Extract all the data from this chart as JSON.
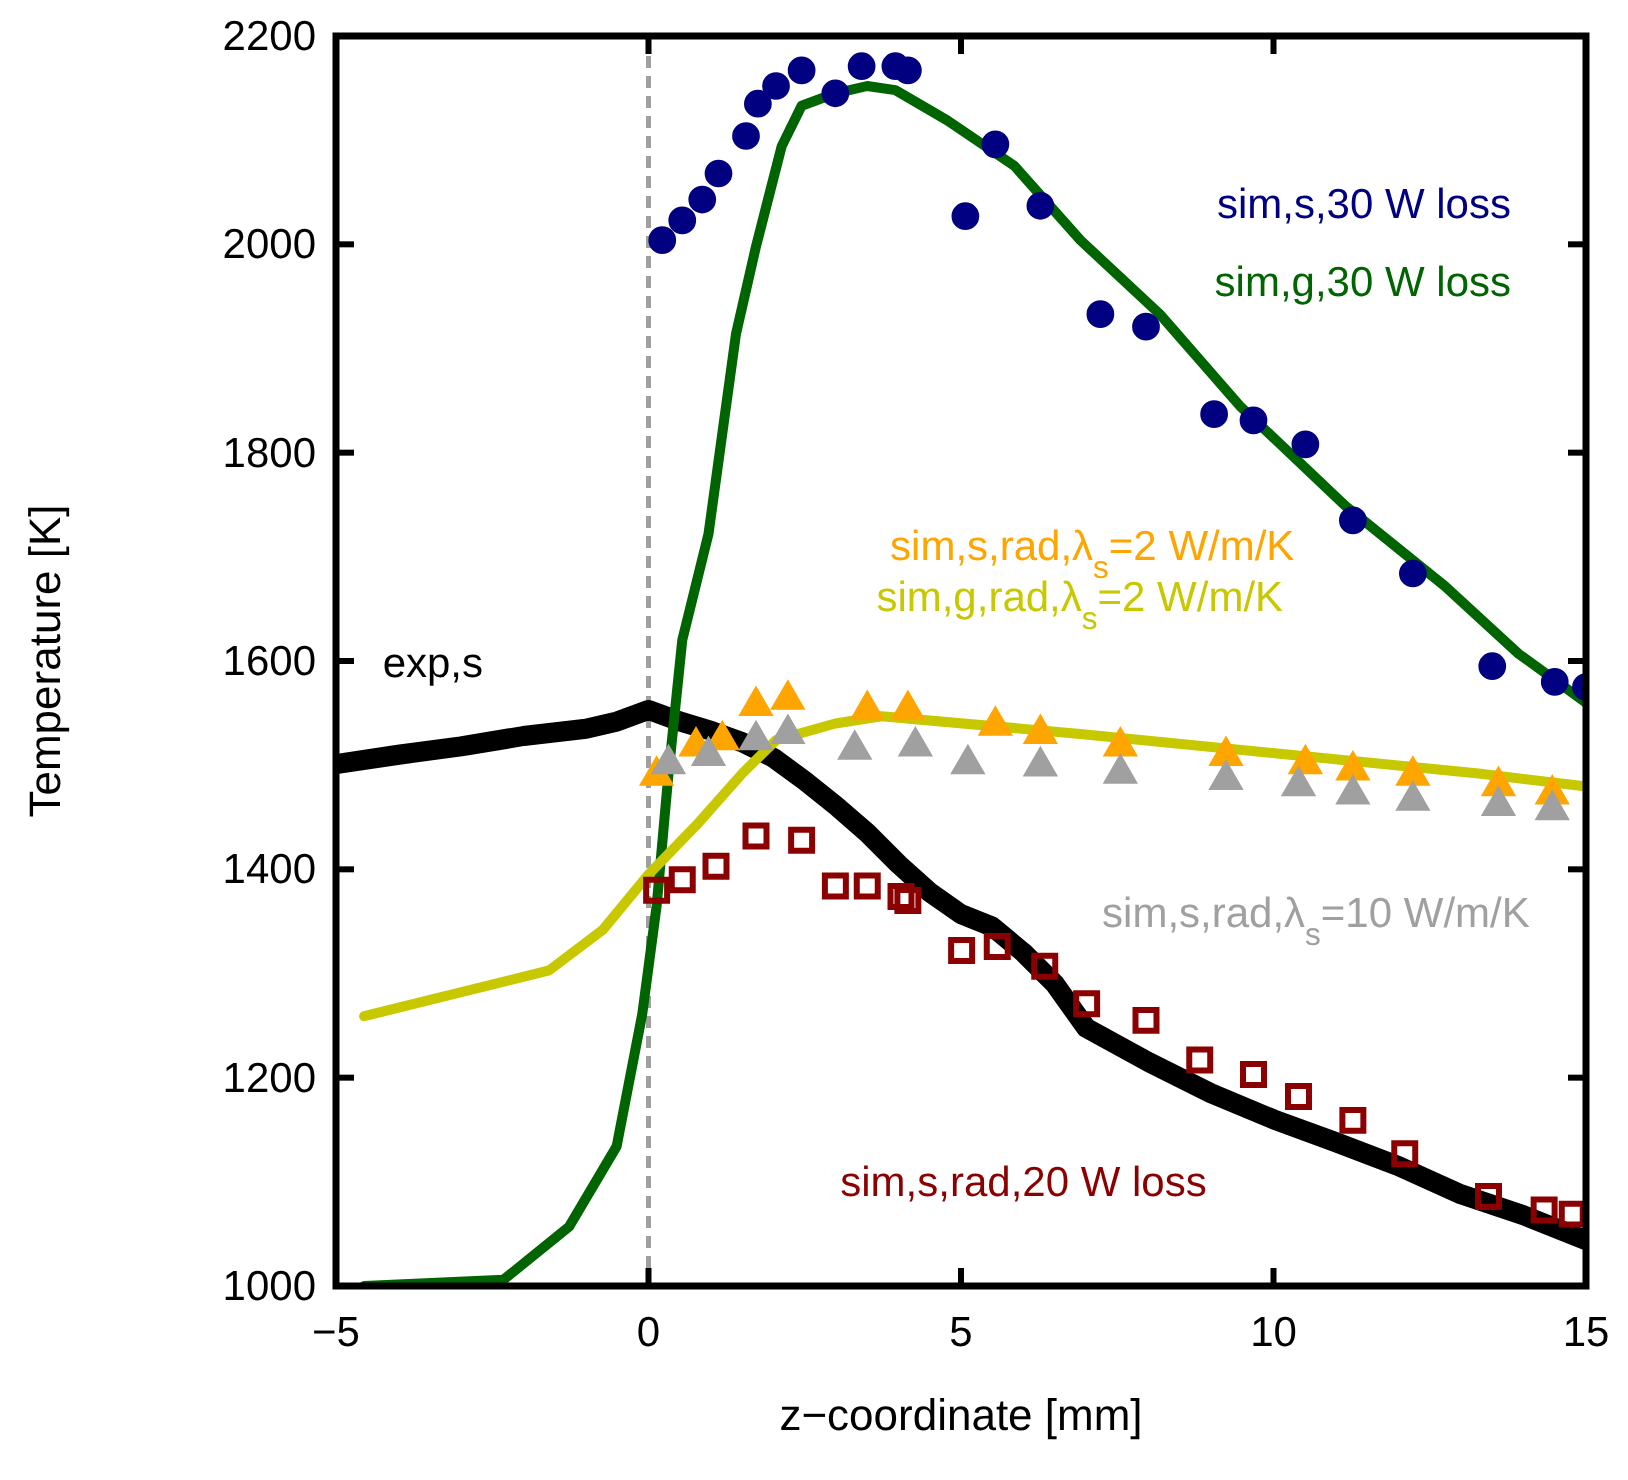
{
  "chart_data": {
    "type": "scatter",
    "xlabel": "z−coordinate [mm]",
    "ylabel": "Temperature [K]",
    "xlim": [
      -5,
      15
    ],
    "ylim": [
      1000,
      2200
    ],
    "xticks": [
      {
        "value": -5,
        "label": "−5"
      },
      0,
      5,
      10,
      15
    ],
    "yticks": [
      1000,
      1200,
      1400,
      1600,
      1800,
      2000,
      2200
    ],
    "grid": false,
    "ref_lines": [
      {
        "axis": "x",
        "value": 0,
        "color": "#a0a0a0",
        "line_style": "dashed"
      }
    ],
    "series": [
      {
        "name": "exp,s",
        "type": "line",
        "color": "#000000",
        "line_style": "solid",
        "marker": "none",
        "x": [
          -5,
          -4,
          -3,
          -2,
          -1,
          -0.5,
          0,
          0.5,
          1,
          1.5,
          2,
          2.5,
          3,
          3.5,
          4,
          4.5,
          5,
          5.5,
          6,
          6.5,
          7,
          8,
          9,
          10,
          11,
          12,
          13,
          14,
          15
        ],
        "values": [
          1501,
          1510,
          1518,
          1528,
          1535,
          1542,
          1553,
          1542,
          1533,
          1522,
          1507,
          1485,
          1461,
          1435,
          1405,
          1378,
          1357,
          1345,
          1320,
          1290,
          1248,
          1215,
          1185,
          1160,
          1138,
          1115,
          1088,
          1068,
          1044
        ]
      },
      {
        "name": "sim,s,30 W loss",
        "color": "#000080",
        "marker": "circle",
        "x": [
          0.22,
          0.54,
          0.86,
          1.12,
          1.56,
          1.75,
          2.04,
          2.45,
          2.99,
          3.41,
          3.95,
          4.15,
          5.07,
          5.55,
          6.27,
          7.23,
          7.96,
          9.05,
          9.68,
          10.51,
          11.27,
          12.23,
          13.5,
          14.5,
          15
        ],
        "values": [
          2004,
          2023,
          2043,
          2068,
          2104,
          2135,
          2152,
          2167,
          2145,
          2171,
          2171,
          2167,
          2027,
          2096,
          2037,
          1933,
          1921,
          1837,
          1831,
          1808,
          1735,
          1684,
          1595,
          1580,
          1575
        ]
      },
      {
        "name": "sim,g,30 W loss",
        "type": "line",
        "color": "#006400",
        "line_style": "solid",
        "marker": "none",
        "x": [
          -4.55,
          -2.32,
          -1.27,
          -0.51,
          -0.1,
          0.13,
          0.32,
          0.54,
          0.96,
          1.4,
          1.72,
          2.13,
          2.45,
          2.99,
          3.5,
          3.95,
          4.78,
          5.86,
          6.91,
          8.18,
          9.46,
          11.15,
          12.74,
          13.92,
          15
        ],
        "values": [
          1000,
          1006,
          1057,
          1134,
          1261,
          1365,
          1492,
          1620,
          1722,
          1914,
          1998,
          2094,
          2133,
          2145,
          2152,
          2148,
          2119,
          2075,
          2004,
          1933,
          1845,
          1749,
          1672,
          1607,
          1560
        ]
      },
      {
        "name": "sim,s,rad,λ$_{s}$=2 W/m/K",
        "color": "#ffa500",
        "marker": "triangle",
        "x": [
          0.13,
          0.76,
          1.18,
          1.72,
          2.23,
          3.5,
          4.15,
          5.55,
          6.27,
          7.55,
          9.24,
          10.51,
          11.27,
          12.23,
          13.6,
          14.46
        ],
        "values": [
          1490,
          1518,
          1524,
          1557,
          1563,
          1553,
          1553,
          1538,
          1530,
          1518,
          1509,
          1501,
          1495,
          1490,
          1480,
          1472
        ]
      },
      {
        "name": "sim,g,rad,λ$_{s}$=2 W/m/K",
        "type": "line",
        "color": "#c8c800",
        "line_style": "solid",
        "marker": "none",
        "x": [
          -4.55,
          -1.59,
          -0.73,
          0,
          0.76,
          1.5,
          2.04,
          2.99,
          3.73,
          6.91,
          10.1,
          13.28,
          14.94
        ],
        "values": [
          1259,
          1303,
          1342,
          1395,
          1442,
          1492,
          1524,
          1540,
          1547,
          1530,
          1511,
          1492,
          1480
        ]
      },
      {
        "name": "sim,s,rad,λ$_{s}$=10 W/m/K",
        "color": "#a0a0a0",
        "marker": "triangle",
        "x": [
          0.32,
          0.96,
          1.72,
          2.23,
          3.3,
          4.27,
          5.11,
          6.27,
          7.55,
          9.24,
          10.4,
          11.27,
          12.23,
          13.6,
          14.46
        ],
        "values": [
          1501,
          1509,
          1524,
          1530,
          1515,
          1518,
          1501,
          1499,
          1492,
          1486,
          1480,
          1472,
          1466,
          1461,
          1457
        ]
      },
      {
        "name": "sim,s,rad,20 W loss",
        "color": "#8b0000",
        "marker": "square",
        "x": [
          0.13,
          0.54,
          1.08,
          1.72,
          2.45,
          2.99,
          3.5,
          4.04,
          4.15,
          5.01,
          5.58,
          6.34,
          7.01,
          7.96,
          8.82,
          9.68,
          10.4,
          11.27,
          12.1,
          13.44,
          14.33,
          14.78
        ],
        "values": [
          1380,
          1390,
          1403,
          1432,
          1428,
          1384,
          1384,
          1374,
          1370,
          1322,
          1326,
          1307,
          1271,
          1255,
          1217,
          1203,
          1182,
          1159,
          1127,
          1086,
          1073,
          1069
        ]
      }
    ]
  }
}
